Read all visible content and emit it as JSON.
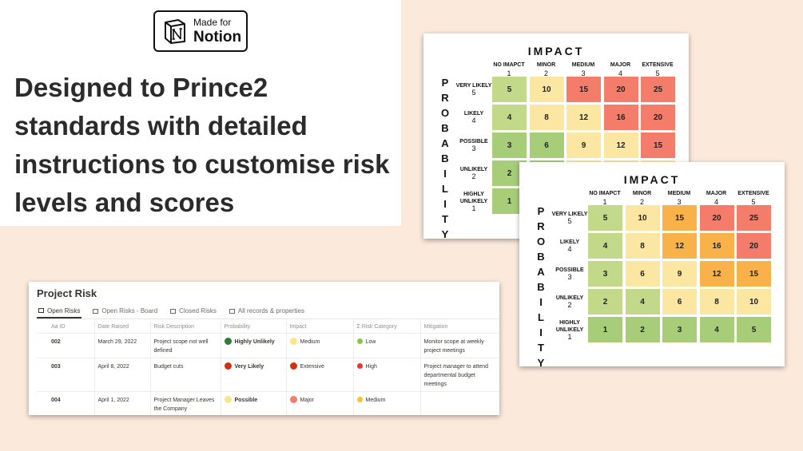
{
  "badge": {
    "small": "Made for",
    "big": "Notion"
  },
  "headline": "Designed to Prince2 standards with detailed instructions to customise risk levels and scores",
  "matrix": {
    "impact_title": "IMPACT",
    "probability_letters": [
      "P",
      "R",
      "O",
      "B",
      "A",
      "B",
      "I",
      "L",
      "I",
      "T",
      "Y"
    ],
    "columns": [
      {
        "label": "NO IMAPCT",
        "num": "1"
      },
      {
        "label": "MINOR",
        "num": "2"
      },
      {
        "label": "MEDIUM",
        "num": "3"
      },
      {
        "label": "MAJOR",
        "num": "4"
      },
      {
        "label": "EXTENSIVE",
        "num": "5"
      }
    ],
    "rows": [
      {
        "label": "VERY LIKELY",
        "num": "5",
        "values": [
          "5",
          "10",
          "15",
          "20",
          "25"
        ]
      },
      {
        "label": "LIKELY",
        "num": "4",
        "values": [
          "4",
          "8",
          "12",
          "16",
          "20"
        ]
      },
      {
        "label": "POSSIBLE",
        "num": "3",
        "values": [
          "3",
          "6",
          "9",
          "12",
          "15"
        ]
      },
      {
        "label": "UNLIKELY",
        "num": "2",
        "values": [
          "2",
          "4",
          "6",
          "8",
          "10"
        ]
      },
      {
        "label": "HIGHLY UNLIKELY",
        "num": "1",
        "values": [
          "1",
          "2",
          "3",
          "4",
          "5"
        ]
      }
    ],
    "colors_front": [
      [
        "#c2d98a",
        "#fbe6a2",
        "#f9b24a",
        "#f37c6a",
        "#f37c6a"
      ],
      [
        "#c2d98a",
        "#fbe6a2",
        "#f9b24a",
        "#f9b24a",
        "#f37c6a"
      ],
      [
        "#c2d98a",
        "#fbe6a2",
        "#fbe6a2",
        "#f9b24a",
        "#f9b24a"
      ],
      [
        "#c2d98a",
        "#c2d98a",
        "#fbe6a2",
        "#fbe6a2",
        "#fbe6a2"
      ],
      [
        "#a7cd78",
        "#a7cd78",
        "#a7cd78",
        "#a7cd78",
        "#a7cd78"
      ]
    ],
    "colors_back": [
      [
        "#c2d98a",
        "#fbe6a2",
        "#f37c6a",
        "#f37c6a",
        "#f37c6a"
      ],
      [
        "#c2d98a",
        "#fbe6a2",
        "#fbe6a2",
        "#f37c6a",
        "#f37c6a"
      ],
      [
        "#a7cd78",
        "#a7cd78",
        "#fbe6a2",
        "#fbe6a2",
        "#f37c6a"
      ],
      [
        "#a7cd78",
        "#a7cd78",
        "#fbe6a2",
        "#fbe6a2",
        "#fbe6a2"
      ],
      [
        "#a7cd78",
        "#a7cd78",
        "#a7cd78",
        "#a7cd78",
        "#a7cd78"
      ]
    ]
  },
  "database": {
    "title": "Project Risk",
    "tabs": [
      "Open Risks",
      "Open Risks - Board",
      "Closed Risks",
      "All records & properties"
    ],
    "columns": [
      "Aa ID",
      "Date Raised",
      "Risk Description",
      "Probability",
      "Impact",
      "Σ Risk Category",
      "Mitigation"
    ],
    "rows": [
      {
        "id": "002",
        "date": "March 29, 2022",
        "desc": "Project scope not well defined",
        "probability": "Highly Unlikely",
        "probability_color": "#2e7d32",
        "impact": "Medium",
        "impact_color": "#fde38a",
        "category": "Low",
        "category_color": "#8bc34a",
        "mitigation": "Monitor scope at weekly project meetings"
      },
      {
        "id": "003",
        "date": "April 8, 2022",
        "desc": "Budget cuts",
        "probability": "Very Likely",
        "probability_color": "#d32f12",
        "impact": "Extensive",
        "impact_color": "#d32f12",
        "category": "High",
        "category_color": "#e53935",
        "mitigation": "Project manager to attend departmental budget meetings"
      },
      {
        "id": "004",
        "date": "April 1, 2022",
        "desc": "Project Manager Leaves the Company",
        "probability": "Possible",
        "probability_color": "#fde38a",
        "impact": "Major",
        "impact_color": "#f37c6a",
        "category": "Medium",
        "category_color": "#fbc02d",
        "mitigation": ""
      }
    ]
  }
}
